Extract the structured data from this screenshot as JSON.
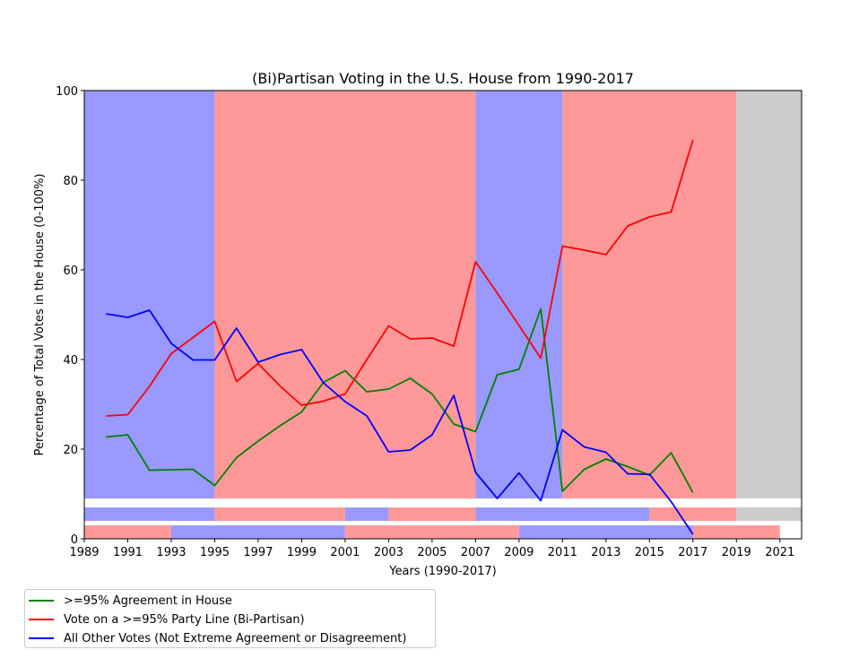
{
  "chart_data": {
    "type": "line",
    "title": "(Bi)Partisan Voting in the U.S. House from 1990-2017",
    "xlabel": "Years (1990-2017)",
    "ylabel": "Percentage of Total Votes in the House (0-100%)",
    "xlim": [
      1989,
      2022
    ],
    "ylim": [
      0,
      100
    ],
    "xticks": [
      "1989",
      "1991",
      "1993",
      "1995",
      "1997",
      "1999",
      "2001",
      "2003",
      "2005",
      "2007",
      "2009",
      "2011",
      "2013",
      "2015",
      "2017",
      "2019",
      "2021"
    ],
    "yticks": [
      "0",
      "20",
      "40",
      "60",
      "80",
      "100"
    ],
    "grid": false,
    "legend_position": "below-left",
    "series": [
      {
        "name": ">=95% Agreement in House",
        "color": "#008000",
        "x": [
          1990,
          1991,
          1992,
          1993,
          1994,
          1995,
          1996,
          1997,
          1998,
          1999,
          2000,
          2001,
          2002,
          2003,
          2004,
          2005,
          2006,
          2007,
          2008,
          2009,
          2010,
          2011,
          2012,
          2013,
          2014,
          2015,
          2016,
          2017
        ],
        "y": [
          22.7,
          23.2,
          15.3,
          15.4,
          15.5,
          11.9,
          18.1,
          21.8,
          25.2,
          28.3,
          34.9,
          37.5,
          32.8,
          33.4,
          35.8,
          32.3,
          25.6,
          23.9,
          36.6,
          37.8,
          51.3,
          10.6,
          15.5,
          17.8,
          16.1,
          14.2,
          19.2,
          10.3
        ]
      },
      {
        "name": "Vote on a >=95% Party Line (Bi-Partisan)",
        "color": "#ff0000",
        "x": [
          1990,
          1991,
          1992,
          1993,
          1994,
          1995,
          1996,
          1997,
          1998,
          1999,
          2000,
          2001,
          2002,
          2003,
          2004,
          2005,
          2006,
          2007,
          2008,
          2009,
          2010,
          2011,
          2012,
          2013,
          2014,
          2015,
          2016,
          2017
        ],
        "y": [
          27.4,
          27.7,
          34.0,
          41.3,
          44.9,
          48.5,
          35.1,
          39.1,
          34.1,
          29.8,
          30.7,
          32.3,
          40.0,
          47.5,
          44.6,
          44.8,
          43.0,
          61.8,
          54.8,
          47.6,
          40.3,
          65.3,
          64.4,
          63.4,
          69.8,
          71.8,
          72.9,
          89.0
        ]
      },
      {
        "name": "All Other Votes (Not Extreme Agreement or Disagreement)",
        "color": "#0000ff",
        "x": [
          1990,
          1991,
          1992,
          1993,
          1994,
          1995,
          1996,
          1997,
          1998,
          1999,
          2000,
          2001,
          2002,
          2003,
          2004,
          2005,
          2006,
          2007,
          2008,
          2009,
          2010,
          2011,
          2012,
          2013,
          2014,
          2015,
          2016,
          2017
        ],
        "y": [
          50.2,
          49.4,
          51.0,
          43.6,
          39.9,
          39.9,
          47.0,
          39.4,
          41.1,
          42.2,
          34.8,
          30.6,
          27.4,
          19.4,
          19.8,
          23.2,
          32.0,
          14.8,
          9.0,
          14.7,
          8.5,
          24.3,
          20.5,
          19.3,
          14.5,
          14.4,
          8.3,
          1.0
        ]
      }
    ],
    "background_bands": {
      "main": [
        {
          "from": 1989,
          "to": 1995,
          "color": "#9999ff"
        },
        {
          "from": 1995,
          "to": 2007,
          "color": "#ff9999"
        },
        {
          "from": 2007,
          "to": 2011,
          "color": "#9999ff"
        },
        {
          "from": 2011,
          "to": 2019,
          "color": "#ff9999"
        },
        {
          "from": 2019,
          "to": 2022,
          "color": "#cccccc"
        }
      ],
      "upper_strip": [
        {
          "from": 1989,
          "to": 1995,
          "color": "#9999ff"
        },
        {
          "from": 1995,
          "to": 2001,
          "color": "#ff9999"
        },
        {
          "from": 2001,
          "to": 2003,
          "color": "#9999ff"
        },
        {
          "from": 2003,
          "to": 2007,
          "color": "#ff9999"
        },
        {
          "from": 2007,
          "to": 2015,
          "color": "#9999ff"
        },
        {
          "from": 2015,
          "to": 2019,
          "color": "#ff9999"
        },
        {
          "from": 2019,
          "to": 2022,
          "color": "#cccccc"
        }
      ],
      "lower_strip": [
        {
          "from": 1989,
          "to": 1993,
          "color": "#ff9999"
        },
        {
          "from": 1993,
          "to": 2001,
          "color": "#9999ff"
        },
        {
          "from": 2001,
          "to": 2009,
          "color": "#ff9999"
        },
        {
          "from": 2009,
          "to": 2017,
          "color": "#9999ff"
        },
        {
          "from": 2017,
          "to": 2021,
          "color": "#ff9999"
        }
      ]
    }
  },
  "legend": {
    "items": [
      {
        "label": ">=95% Agreement in House",
        "color": "#008000"
      },
      {
        "label": "Vote on a >=95% Party Line (Bi-Partisan)",
        "color": "#ff0000"
      },
      {
        "label": "All Other Votes (Not Extreme Agreement or Disagreement)",
        "color": "#0000ff"
      }
    ]
  }
}
